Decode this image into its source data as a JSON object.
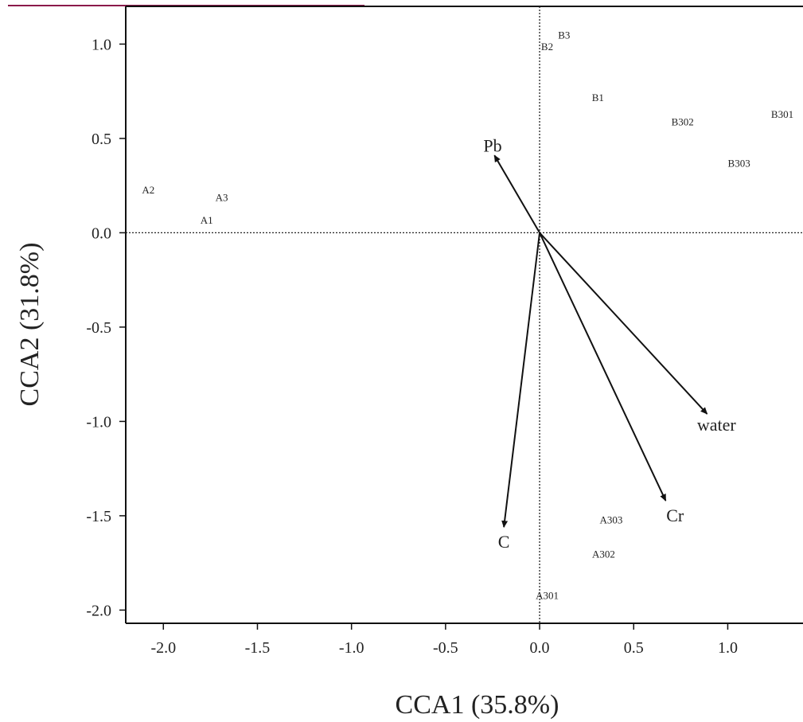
{
  "chart_data": {
    "type": "scatter",
    "title": "",
    "xlabel": "CCA1 (35.8%)",
    "ylabel": "CCA2 (31.8%)",
    "xlim": [
      -2.2,
      1.4
    ],
    "ylim": [
      -2.07,
      1.2
    ],
    "xticks": [
      -2.0,
      -1.5,
      -1.0,
      -0.5,
      0.0,
      0.5,
      1.0
    ],
    "xtick_labels": [
      "-2.0",
      "-1.5",
      "-1.0",
      "-0.5",
      "0.0",
      "0.5",
      "1.0"
    ],
    "yticks": [
      1.0,
      0.5,
      0.0,
      -0.5,
      -1.0,
      -1.5,
      -2.0
    ],
    "ytick_labels": [
      "1.0",
      "0.5",
      "0.0",
      "-0.5",
      "-1.0",
      "-1.5",
      "-2.0"
    ],
    "reference_lines": {
      "x": 0,
      "y": 0,
      "style": "dotted"
    },
    "grid": false,
    "sites": [
      {
        "label": "A1",
        "x": -1.77,
        "y": 0.07
      },
      {
        "label": "A2",
        "x": -2.08,
        "y": 0.23
      },
      {
        "label": "A3",
        "x": -1.69,
        "y": 0.19
      },
      {
        "label": "B1",
        "x": 0.31,
        "y": 0.72
      },
      {
        "label": "B2",
        "x": 0.04,
        "y": 0.99
      },
      {
        "label": "B3",
        "x": 0.13,
        "y": 1.05
      },
      {
        "label": "B301",
        "x": 1.29,
        "y": 0.63
      },
      {
        "label": "B302",
        "x": 0.76,
        "y": 0.59
      },
      {
        "label": "B303",
        "x": 1.06,
        "y": 0.37
      },
      {
        "label": "A301",
        "x": 0.04,
        "y": -1.92
      },
      {
        "label": "A302",
        "x": 0.34,
        "y": -1.7
      },
      {
        "label": "A303",
        "x": 0.38,
        "y": -1.52
      }
    ],
    "vectors": [
      {
        "label": "Pb",
        "x": -0.24,
        "y": 0.41,
        "label_x": -0.25,
        "label_y": 0.46
      },
      {
        "label": "water",
        "x": 0.89,
        "y": -0.96,
        "label_x": 0.94,
        "label_y": -1.02
      },
      {
        "label": "Cr",
        "x": 0.67,
        "y": -1.42,
        "label_x": 0.72,
        "label_y": -1.5
      },
      {
        "label": "C",
        "x": -0.19,
        "y": -1.56,
        "label_x": -0.19,
        "label_y": -1.64
      }
    ]
  }
}
